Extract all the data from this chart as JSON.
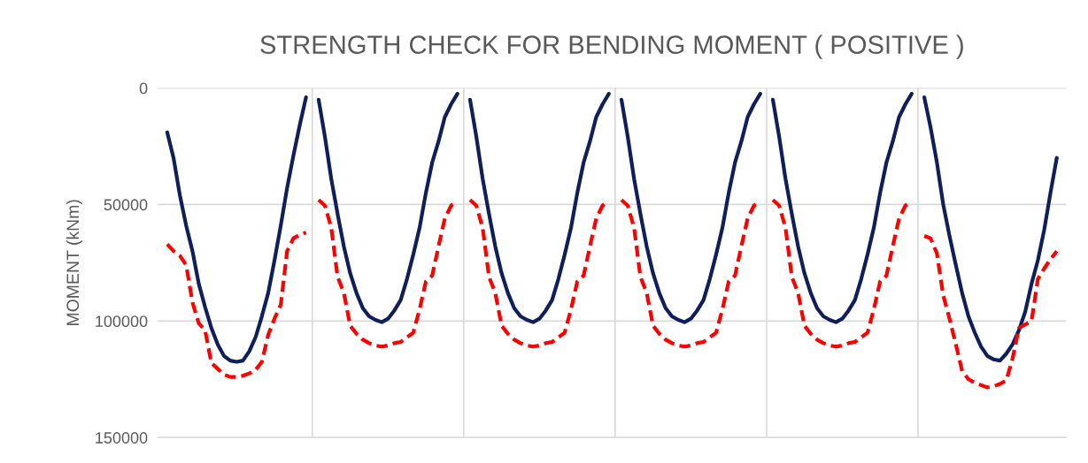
{
  "chart_data": {
    "type": "line",
    "title": "STRENGTH CHECK FOR BENDING MOMENT ( POSITIVE )",
    "ylabel": "MOMENT (kNm)",
    "categories": [
      null,
      null,
      null,
      null,
      null,
      null,
      null,
      null,
      null,
      null,
      null,
      null,
      null,
      null,
      null,
      null,
      null,
      null,
      null,
      null,
      null,
      null,
      null,
      null,
      null,
      null,
      null,
      null,
      null,
      null,
      null,
      null,
      null,
      null,
      null,
      null,
      null,
      null,
      null,
      null,
      null,
      null,
      null,
      null,
      null,
      null,
      null,
      null,
      null,
      null,
      null,
      null,
      null,
      null,
      null,
      null,
      null,
      null,
      null,
      null,
      null,
      null,
      null,
      null,
      null,
      null,
      null,
      null,
      null,
      null,
      null,
      null,
      null,
      null,
      null,
      null,
      null,
      null,
      null,
      null,
      null,
      null,
      null,
      null,
      null,
      null,
      null,
      null,
      null,
      null,
      null,
      null,
      null,
      null,
      null,
      null,
      null,
      null,
      null,
      null,
      null,
      null,
      null,
      null,
      null,
      null,
      null,
      null,
      null,
      null,
      null,
      null,
      null,
      null,
      null,
      null,
      null,
      null,
      null,
      null,
      null,
      null,
      null,
      null,
      null,
      null,
      null,
      null,
      null,
      null,
      null,
      null,
      null,
      null,
      null,
      null,
      null,
      null,
      null,
      null,
      null,
      null,
      null,
      null
    ],
    "ylim": [
      150000,
      0
    ],
    "yticks": [
      0,
      50000,
      100000,
      150000
    ],
    "grid": true,
    "legend": false,
    "marker": "none",
    "series": [
      {
        "color": "#0f1f5c",
        "line_style": "solid",
        "values": [
          null,
          19000,
          30000,
          46000,
          59000,
          70000,
          84000,
          94000,
          103000,
          110000,
          115000,
          117000,
          117500,
          117000,
          113000,
          107000,
          98000,
          88000,
          74000,
          59000,
          43000,
          29000,
          16000,
          4000,
          null,
          5000,
          21000,
          39000,
          54000,
          68000,
          79500,
          88000,
          94500,
          98000,
          99500,
          100500,
          99000,
          95500,
          91000,
          82000,
          71500,
          60000,
          45000,
          32000,
          23000,
          12500,
          7000,
          2500,
          null,
          5000,
          21000,
          39000,
          54000,
          68000,
          79500,
          88000,
          94500,
          98000,
          99500,
          100500,
          99000,
          95500,
          91000,
          82000,
          71500,
          60000,
          45000,
          32000,
          23000,
          12500,
          7000,
          2500,
          null,
          5000,
          21000,
          39000,
          54000,
          68000,
          79500,
          88000,
          94500,
          98000,
          99500,
          100500,
          99000,
          95500,
          91000,
          82000,
          71500,
          60000,
          45000,
          32000,
          23000,
          12500,
          7000,
          2500,
          null,
          5000,
          21000,
          39000,
          54000,
          68000,
          79500,
          88000,
          94500,
          98000,
          99500,
          100500,
          99000,
          95500,
          91000,
          82000,
          71500,
          60000,
          45000,
          32000,
          23000,
          12500,
          7000,
          2500,
          null,
          4000,
          17000,
          32000,
          50000,
          63500,
          76000,
          88000,
          98000,
          105000,
          111000,
          115000,
          116500,
          117000,
          114000,
          110000,
          104000,
          96000,
          84000,
          74000,
          61000,
          45000,
          30000,
          null
        ]
      },
      {
        "color": "#ff0000",
        "line_style": "dashed",
        "values": [
          null,
          67000,
          70000,
          72000,
          76000,
          92000,
          101000,
          104000,
          118000,
          120500,
          123000,
          124000,
          124000,
          123500,
          122500,
          121000,
          117500,
          106000,
          99000,
          93000,
          70000,
          64500,
          63000,
          62000,
          null,
          48000,
          50500,
          60000,
          81000,
          88000,
          102000,
          105500,
          108000,
          109500,
          110500,
          111000,
          110500,
          109500,
          109000,
          107000,
          105000,
          95000,
          83000,
          80500,
          68000,
          56000,
          50500,
          48500,
          null,
          48000,
          50500,
          60000,
          81000,
          88000,
          102000,
          105500,
          108000,
          109500,
          110500,
          111000,
          110500,
          109500,
          109000,
          107000,
          105000,
          95000,
          83000,
          80500,
          68000,
          56000,
          50500,
          48500,
          null,
          48000,
          50500,
          60000,
          81000,
          88000,
          102000,
          105500,
          108000,
          109500,
          110500,
          111000,
          110500,
          109500,
          109000,
          107000,
          105000,
          95000,
          83000,
          80500,
          68000,
          56000,
          50500,
          48500,
          null,
          48000,
          50500,
          60000,
          81000,
          88000,
          102000,
          105500,
          108000,
          109500,
          110500,
          111000,
          110500,
          109500,
          109000,
          107000,
          105000,
          95000,
          83000,
          80500,
          68000,
          56000,
          50500,
          48500,
          null,
          63500,
          64500,
          71000,
          89000,
          99000,
          110000,
          121500,
          125000,
          126500,
          127500,
          128500,
          128000,
          127000,
          125500,
          116000,
          103000,
          101500,
          100000,
          82000,
          77500,
          73500,
          70000,
          null
        ]
      }
    ]
  }
}
